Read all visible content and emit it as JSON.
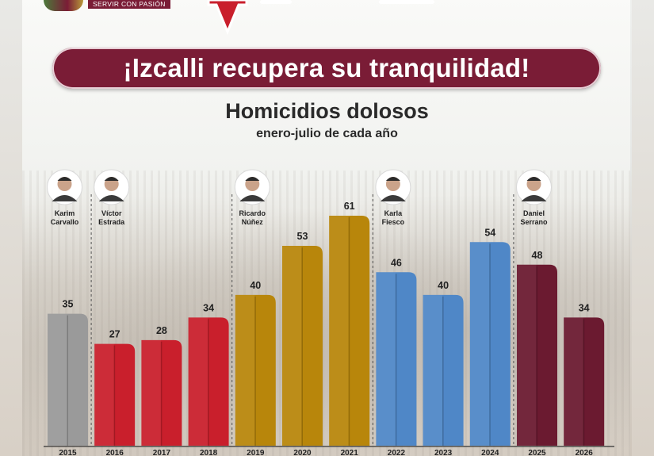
{
  "branding": {
    "logo_text": "SERVIR CON PASIÓN"
  },
  "headline": "¡Izcalli recupera su tranquilidad!",
  "colors": {
    "maroon": "#6b1a30",
    "red": "#c91f2c",
    "gold": "#b8860b",
    "blue": "#4f87c7",
    "gray": "#9a9a9a"
  },
  "chart_data": {
    "type": "bar",
    "title": "Homicidios dolosos",
    "subtitle": "enero-julio de cada año",
    "categories": [
      "2015",
      "2016",
      "2017",
      "2018",
      "2019",
      "2020",
      "2021",
      "2022",
      "2023",
      "2024",
      "2025",
      "2026"
    ],
    "values": [
      35,
      27,
      28,
      34,
      40,
      53,
      61,
      46,
      40,
      54,
      48,
      34
    ],
    "bar_colors": [
      "#9a9a9a",
      "#c91f2c",
      "#c91f2c",
      "#c91f2c",
      "#b8860b",
      "#b8860b",
      "#b8860b",
      "#4f87c7",
      "#4f87c7",
      "#4f87c7",
      "#6b1a30",
      "#6b1a30"
    ],
    "ylim": [
      0,
      61
    ],
    "grid": false,
    "legend": "none",
    "administrations": [
      {
        "name": [
          "Karim",
          "Carvallo"
        ],
        "start_index": 0
      },
      {
        "name": [
          "Víctor",
          "Estrada"
        ],
        "start_index": 1
      },
      {
        "name": [
          "Ricardo",
          "Núñez"
        ],
        "start_index": 4
      },
      {
        "name": [
          "Karla",
          "Fiesco"
        ],
        "start_index": 7
      },
      {
        "name": [
          "Daniel",
          "Serrano"
        ],
        "start_index": 10
      }
    ]
  }
}
